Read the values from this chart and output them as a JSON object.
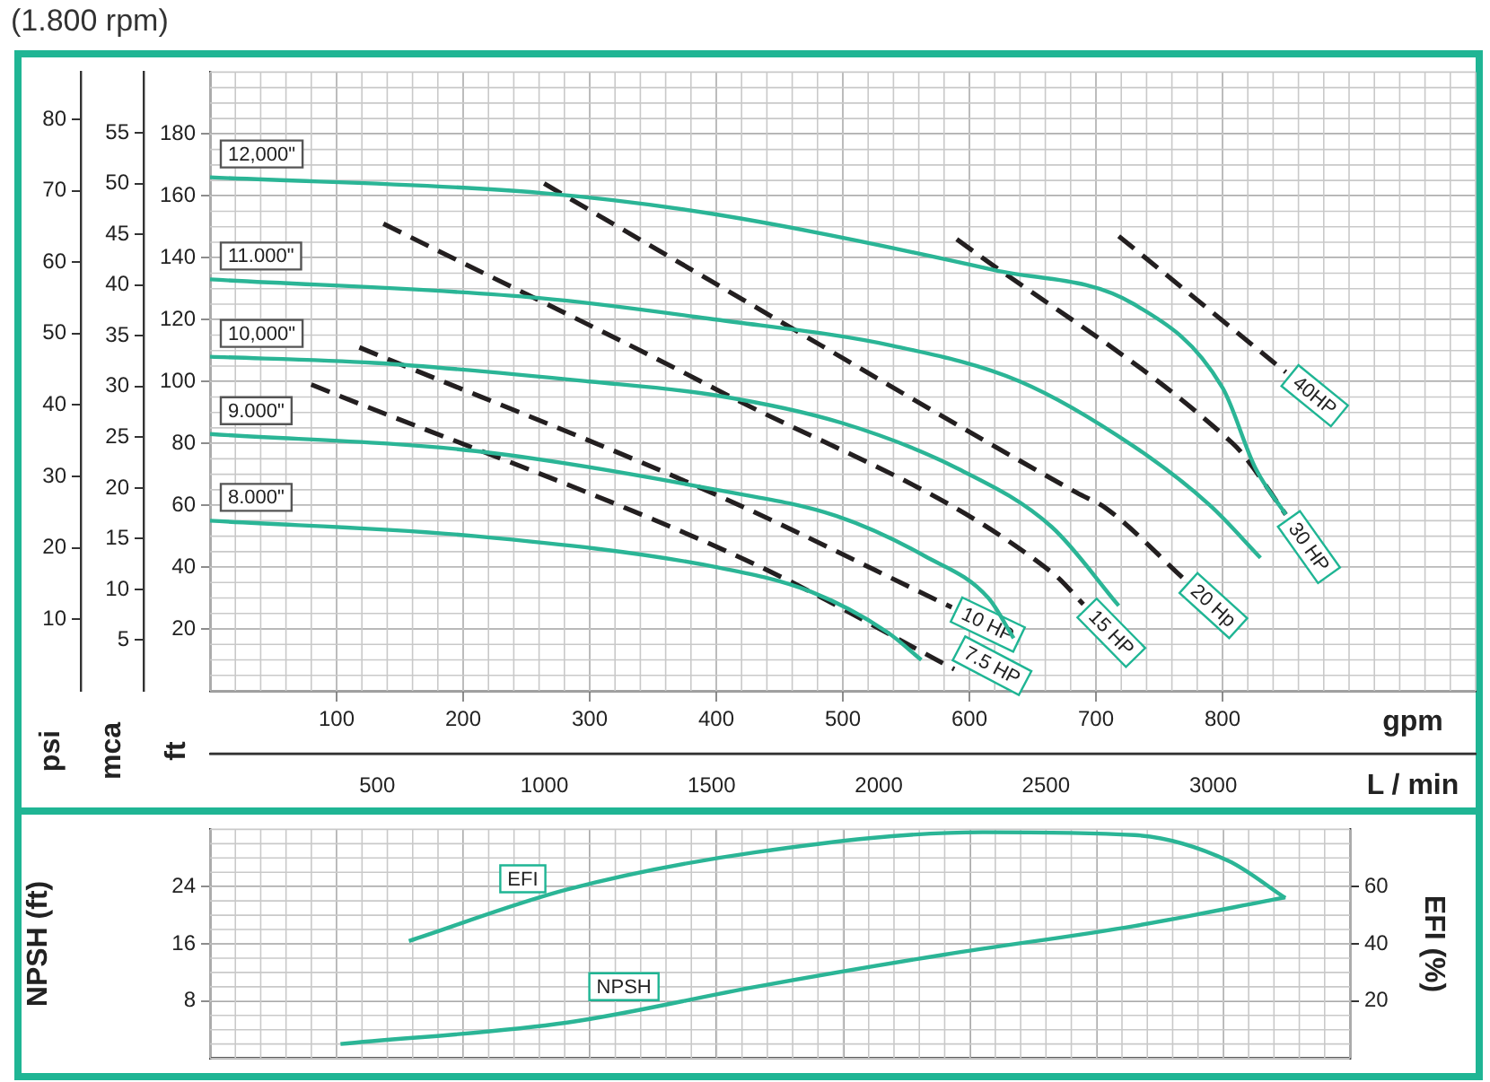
{
  "chart_data": [
    {
      "type": "line",
      "title": "(1.800 rpm)",
      "xlabel": "gpm",
      "x2label": "L / min",
      "ylabel": "ft",
      "y2label": "mca",
      "y3label": "psi",
      "xlim": [
        0,
        1000
      ],
      "xticks": [
        100,
        200,
        300,
        400,
        500,
        600,
        700,
        800
      ],
      "x2lim": [
        0,
        3785
      ],
      "x2ticks": [
        500,
        1000,
        1500,
        2000,
        2500,
        3000
      ],
      "ylim": [
        0,
        200
      ],
      "yticks": [
        20,
        40,
        60,
        80,
        100,
        120,
        140,
        160,
        180
      ],
      "y2lim": [
        0,
        61
      ],
      "y2ticks": [
        5,
        10,
        15,
        20,
        25,
        30,
        35,
        40,
        45,
        50,
        55
      ],
      "y3lim": [
        0,
        86.6
      ],
      "y3ticks": [
        10,
        20,
        30,
        40,
        50,
        60,
        70,
        80
      ],
      "grid": true,
      "legend": false,
      "marker": "none",
      "series": [
        {
          "name": "12,000\"",
          "color": "#2bb596",
          "line_style": "solid",
          "x": [
            0,
            260,
            400,
            620,
            730,
            800,
            826,
            850
          ],
          "values": [
            166,
            161,
            154,
            136,
            125,
            98,
            72,
            57
          ]
        },
        {
          "name": "11.000\"",
          "color": "#2bb596",
          "line_style": "solid",
          "x": [
            0,
            260,
            400,
            540,
            640,
            730,
            790,
            830
          ],
          "values": [
            133,
            127,
            120,
            111.5,
            100,
            79,
            60,
            43
          ]
        },
        {
          "name": "10,000\"",
          "color": "#2bb596",
          "line_style": "solid",
          "x": [
            0,
            130,
            300,
            400,
            500,
            590,
            665,
            718
          ],
          "values": [
            108,
            106,
            100,
            95.5,
            86.5,
            72,
            53,
            27.5
          ]
        },
        {
          "name": "9.000\"",
          "color": "#2bb596",
          "line_style": "solid",
          "x": [
            0,
            210,
            400,
            495,
            565,
            615,
            635
          ],
          "values": [
            83,
            77.5,
            65,
            56.5,
            43.5,
            30,
            17
          ]
        },
        {
          "name": "8.000\"",
          "color": "#2bb596",
          "line_style": "solid",
          "x": [
            0,
            210,
            400,
            475,
            535,
            562
          ],
          "values": [
            55,
            50,
            40,
            32,
            19,
            10
          ]
        },
        {
          "name": "7.5 HP",
          "color": "#231f20",
          "line_style": "dashed",
          "x": [
            80,
            430,
            588
          ],
          "values": [
            99,
            41,
            7
          ]
        },
        {
          "name": "10 HP",
          "color": "#231f20",
          "line_style": "dashed",
          "x": [
            118,
            402,
            586
          ],
          "values": [
            111,
            63,
            27
          ]
        },
        {
          "name": "15 HP",
          "color": "#231f20",
          "line_style": "dashed",
          "x": [
            137,
            402,
            666,
            690
          ],
          "values": [
            151,
            97,
            38,
            28
          ]
        },
        {
          "name": "20 Hp",
          "color": "#231f20",
          "line_style": "dashed",
          "x": [
            264,
            402,
            685,
            708,
            770
          ],
          "values": [
            164,
            131,
            64,
            59,
            36
          ]
        },
        {
          "name": "30 HP",
          "color": "#231f20",
          "line_style": "dashed",
          "x": [
            590,
            808,
            817,
            850
          ],
          "values": [
            146,
            80,
            76,
            57
          ]
        },
        {
          "name": "40HP",
          "color": "#231f20",
          "line_style": "dashed",
          "x": [
            718,
            850
          ],
          "values": [
            147,
            103
          ]
        }
      ]
    },
    {
      "type": "line",
      "ylabel": "NPSH (ft)",
      "y2label": "EFI (%)",
      "xlim": [
        0,
        900
      ],
      "xticks": [
        100,
        200,
        300,
        400,
        500,
        600,
        700,
        800
      ],
      "ylim": [
        0,
        32
      ],
      "yticks": [
        8,
        16,
        24
      ],
      "y2lim": [
        0,
        80
      ],
      "y2ticks": [
        20,
        40,
        60
      ],
      "tick_labels": "y",
      "grid": true,
      "legend": false,
      "marker": "none",
      "series": [
        {
          "name": "EFI",
          "color": "#2bb596",
          "axis": "y2",
          "x": [
            157,
            282,
            431,
            610,
            730,
            804,
            849
          ],
          "values": [
            41,
            59,
            72,
            79,
            78,
            69,
            56
          ]
        },
        {
          "name": "NPSH",
          "color": "#2bb596",
          "x": [
            103,
            282,
            431,
            580,
            730,
            849
          ],
          "values": [
            2,
            5,
            10,
            14.5,
            18.5,
            22.5
          ]
        }
      ]
    }
  ]
}
